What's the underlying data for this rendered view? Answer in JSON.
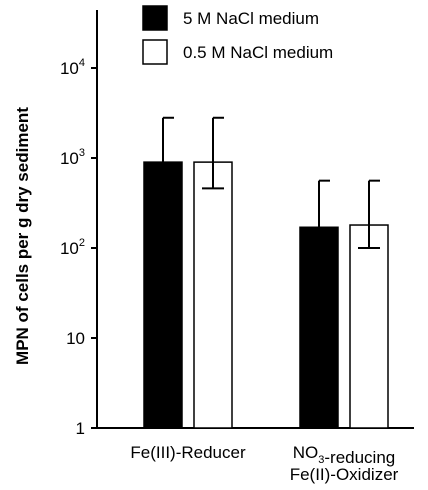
{
  "chart_data": {
    "type": "bar",
    "yscale": "log",
    "ylim": [
      1,
      100000
    ],
    "ylabel": "MPN of cells per g dry sediment",
    "yticks": [
      {
        "value": 1,
        "base": "1",
        "exp": ""
      },
      {
        "value": 10,
        "base": "10",
        "exp": ""
      },
      {
        "value": 100,
        "base": "10",
        "exp": "2"
      },
      {
        "value": 1000,
        "base": "10",
        "exp": "3"
      },
      {
        "value": 10000,
        "base": "10",
        "exp": "4"
      }
    ],
    "categories": [
      {
        "lines": [
          {
            "parts": [
              {
                "text": "Fe(III)-Reducer",
                "sub": ""
              }
            ]
          }
        ]
      },
      {
        "lines": [
          {
            "parts": [
              {
                "text": "NO",
                "sub": "3"
              },
              {
                "text": "-reducing",
                "sub": ""
              }
            ]
          },
          {
            "parts": [
              {
                "text": "Fe(II)-Oxidizer",
                "sub": ""
              }
            ]
          }
        ]
      }
    ],
    "series": [
      {
        "name": "5 M NaCl medium",
        "fill": "#000000",
        "values": [
          900,
          170
        ],
        "err_low": [
          null,
          null
        ],
        "err_high": [
          2800,
          560
        ]
      },
      {
        "name": "0.5 M NaCl medium",
        "fill": "#ffffff",
        "values": [
          900,
          180
        ],
        "err_low": [
          460,
          100
        ],
        "err_high": [
          2800,
          560
        ]
      }
    ],
    "legend_position": "top-center",
    "grid": false
  }
}
